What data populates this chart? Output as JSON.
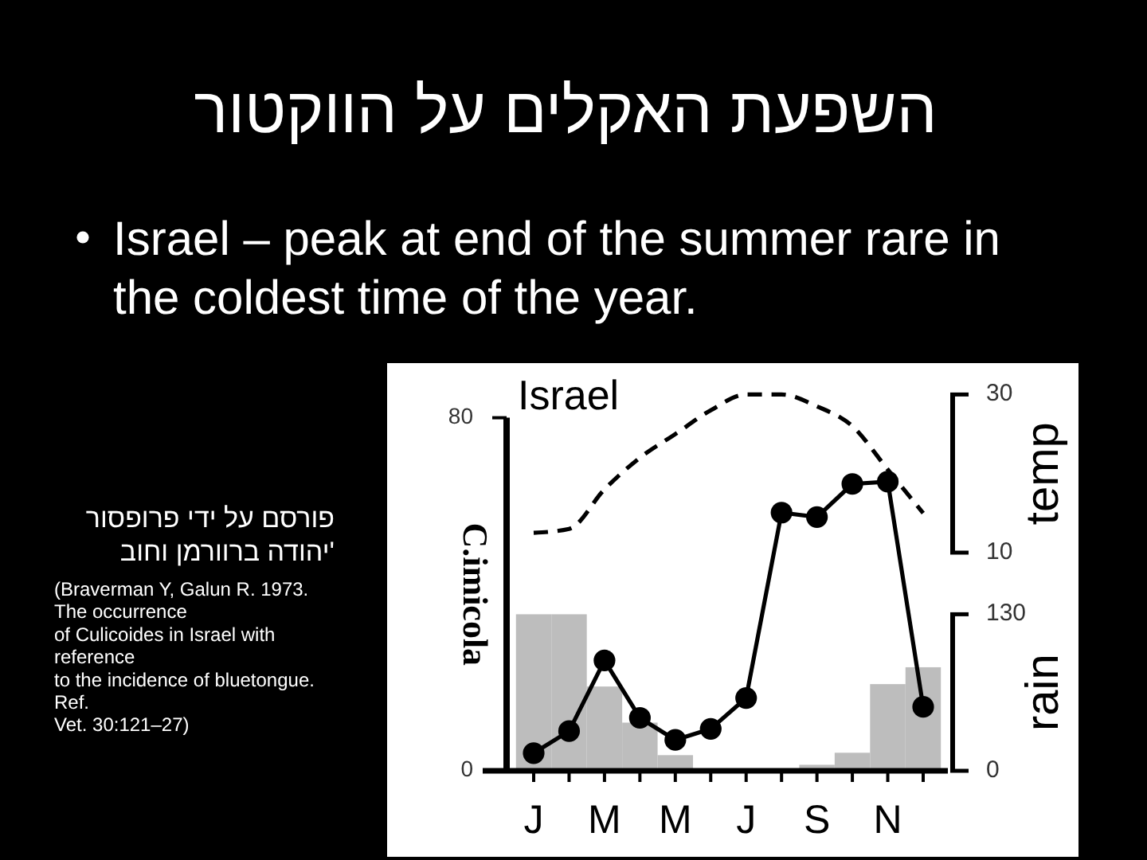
{
  "chart_data": {
    "type": "line",
    "title": "השפעת האקלים על הווקטור",
    "subtitle": "Israel – peak at end of the summer rare in the coldest time of the year.",
    "ylabel": "C.imicola",
    "y2label": "temp",
    "y3label": "rain",
    "annotations": [
      "Israel",
      "פורסם על ידי פרופסור\nיהודה ברוורמן וחוב'",
      "(Braverman Y, Galun R. 1973.\nThe occurrence\nof Culicoides in Israel with\nreference\nto the incidence of bluetongue.\nRef.\nVet. 30:121–27)"
    ],
    "categories": [
      "J",
      null,
      "M",
      null,
      "M",
      null,
      "J",
      null,
      "S",
      null,
      "N",
      null
    ],
    "series": [
      {
        "type": "bar",
        "axis": "y3",
        "color": "#bdbdbd",
        "values": [
          130,
          130,
          70,
          40,
          13,
          0,
          0,
          0,
          5,
          15,
          72,
          86
        ]
      },
      {
        "axis": "y2",
        "color": "#000000",
        "line_style": "dashed",
        "marker": "none",
        "values": [
          12.5,
          13,
          18,
          22,
          25,
          28,
          30,
          30,
          28.5,
          26,
          20.5,
          15
        ]
      },
      {
        "color": "#000000",
        "values": [
          4,
          9,
          25,
          12,
          7,
          9.5,
          16.5,
          58.5,
          57.5,
          65,
          65.5,
          14.5
        ]
      }
    ],
    "ylim": [
      0,
      80
    ],
    "yticks": [
      0,
      80
    ],
    "y2lim": [
      10,
      30
    ],
    "y2ticks": [
      10,
      30
    ],
    "y3lim": [
      0,
      130
    ],
    "y3ticks": [
      0,
      130
    ],
    "marker": "circle",
    "line_style": "solid"
  }
}
